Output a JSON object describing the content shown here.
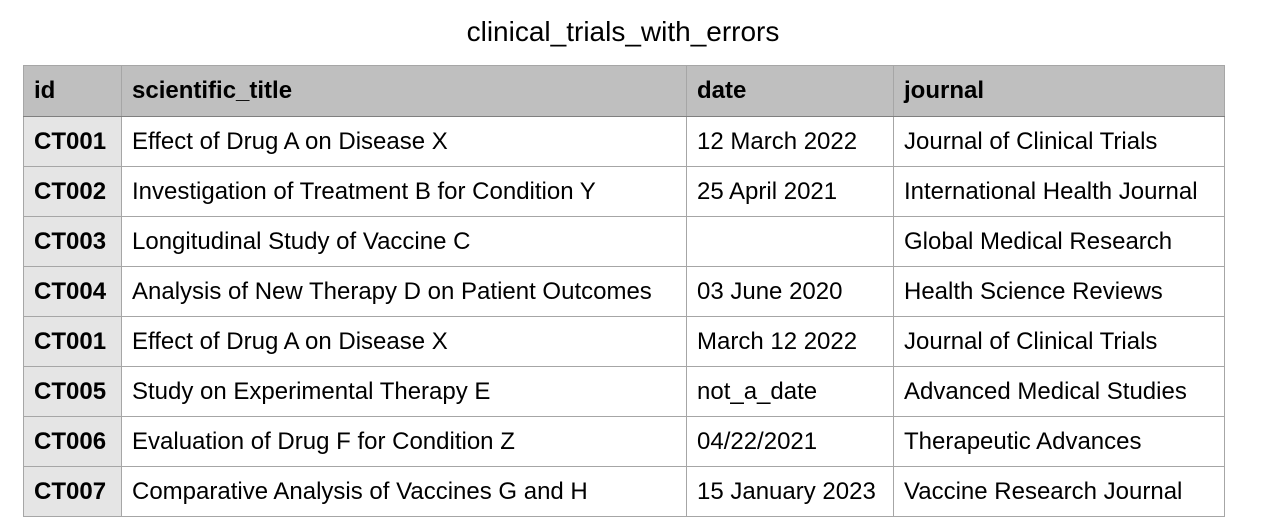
{
  "title": "clinical_trials_with_errors",
  "table": {
    "columns": [
      "id",
      "scientific_title",
      "date",
      "journal"
    ],
    "rows": [
      {
        "id": "CT001",
        "scientific_title": "Effect of Drug A on Disease X",
        "date": "12 March 2022",
        "journal": "Journal of Clinical Trials"
      },
      {
        "id": "CT002",
        "scientific_title": "Investigation of Treatment B for Condition Y",
        "date": "25 April 2021",
        "journal": "International Health Journal"
      },
      {
        "id": "CT003",
        "scientific_title": "Longitudinal Study of Vaccine C",
        "date": "",
        "journal": "Global Medical Research"
      },
      {
        "id": "CT004",
        "scientific_title": "Analysis of New Therapy D on Patient Outcomes",
        "date": "03 June 2020",
        "journal": "Health Science Reviews"
      },
      {
        "id": "CT001",
        "scientific_title": "Effect of Drug A on Disease X",
        "date": "March 12 2022",
        "journal": "Journal of Clinical Trials"
      },
      {
        "id": "CT005",
        "scientific_title": "Study on Experimental Therapy E",
        "date": "not_a_date",
        "journal": "Advanced Medical Studies"
      },
      {
        "id": "CT006",
        "scientific_title": "Evaluation of Drug F for Condition Z",
        "date": "04/22/2021",
        "journal": "Therapeutic Advances"
      },
      {
        "id": "CT007",
        "scientific_title": "Comparative Analysis of Vaccines G and H",
        "date": "15 January 2023",
        "journal": "Vaccine Research Journal"
      }
    ]
  }
}
